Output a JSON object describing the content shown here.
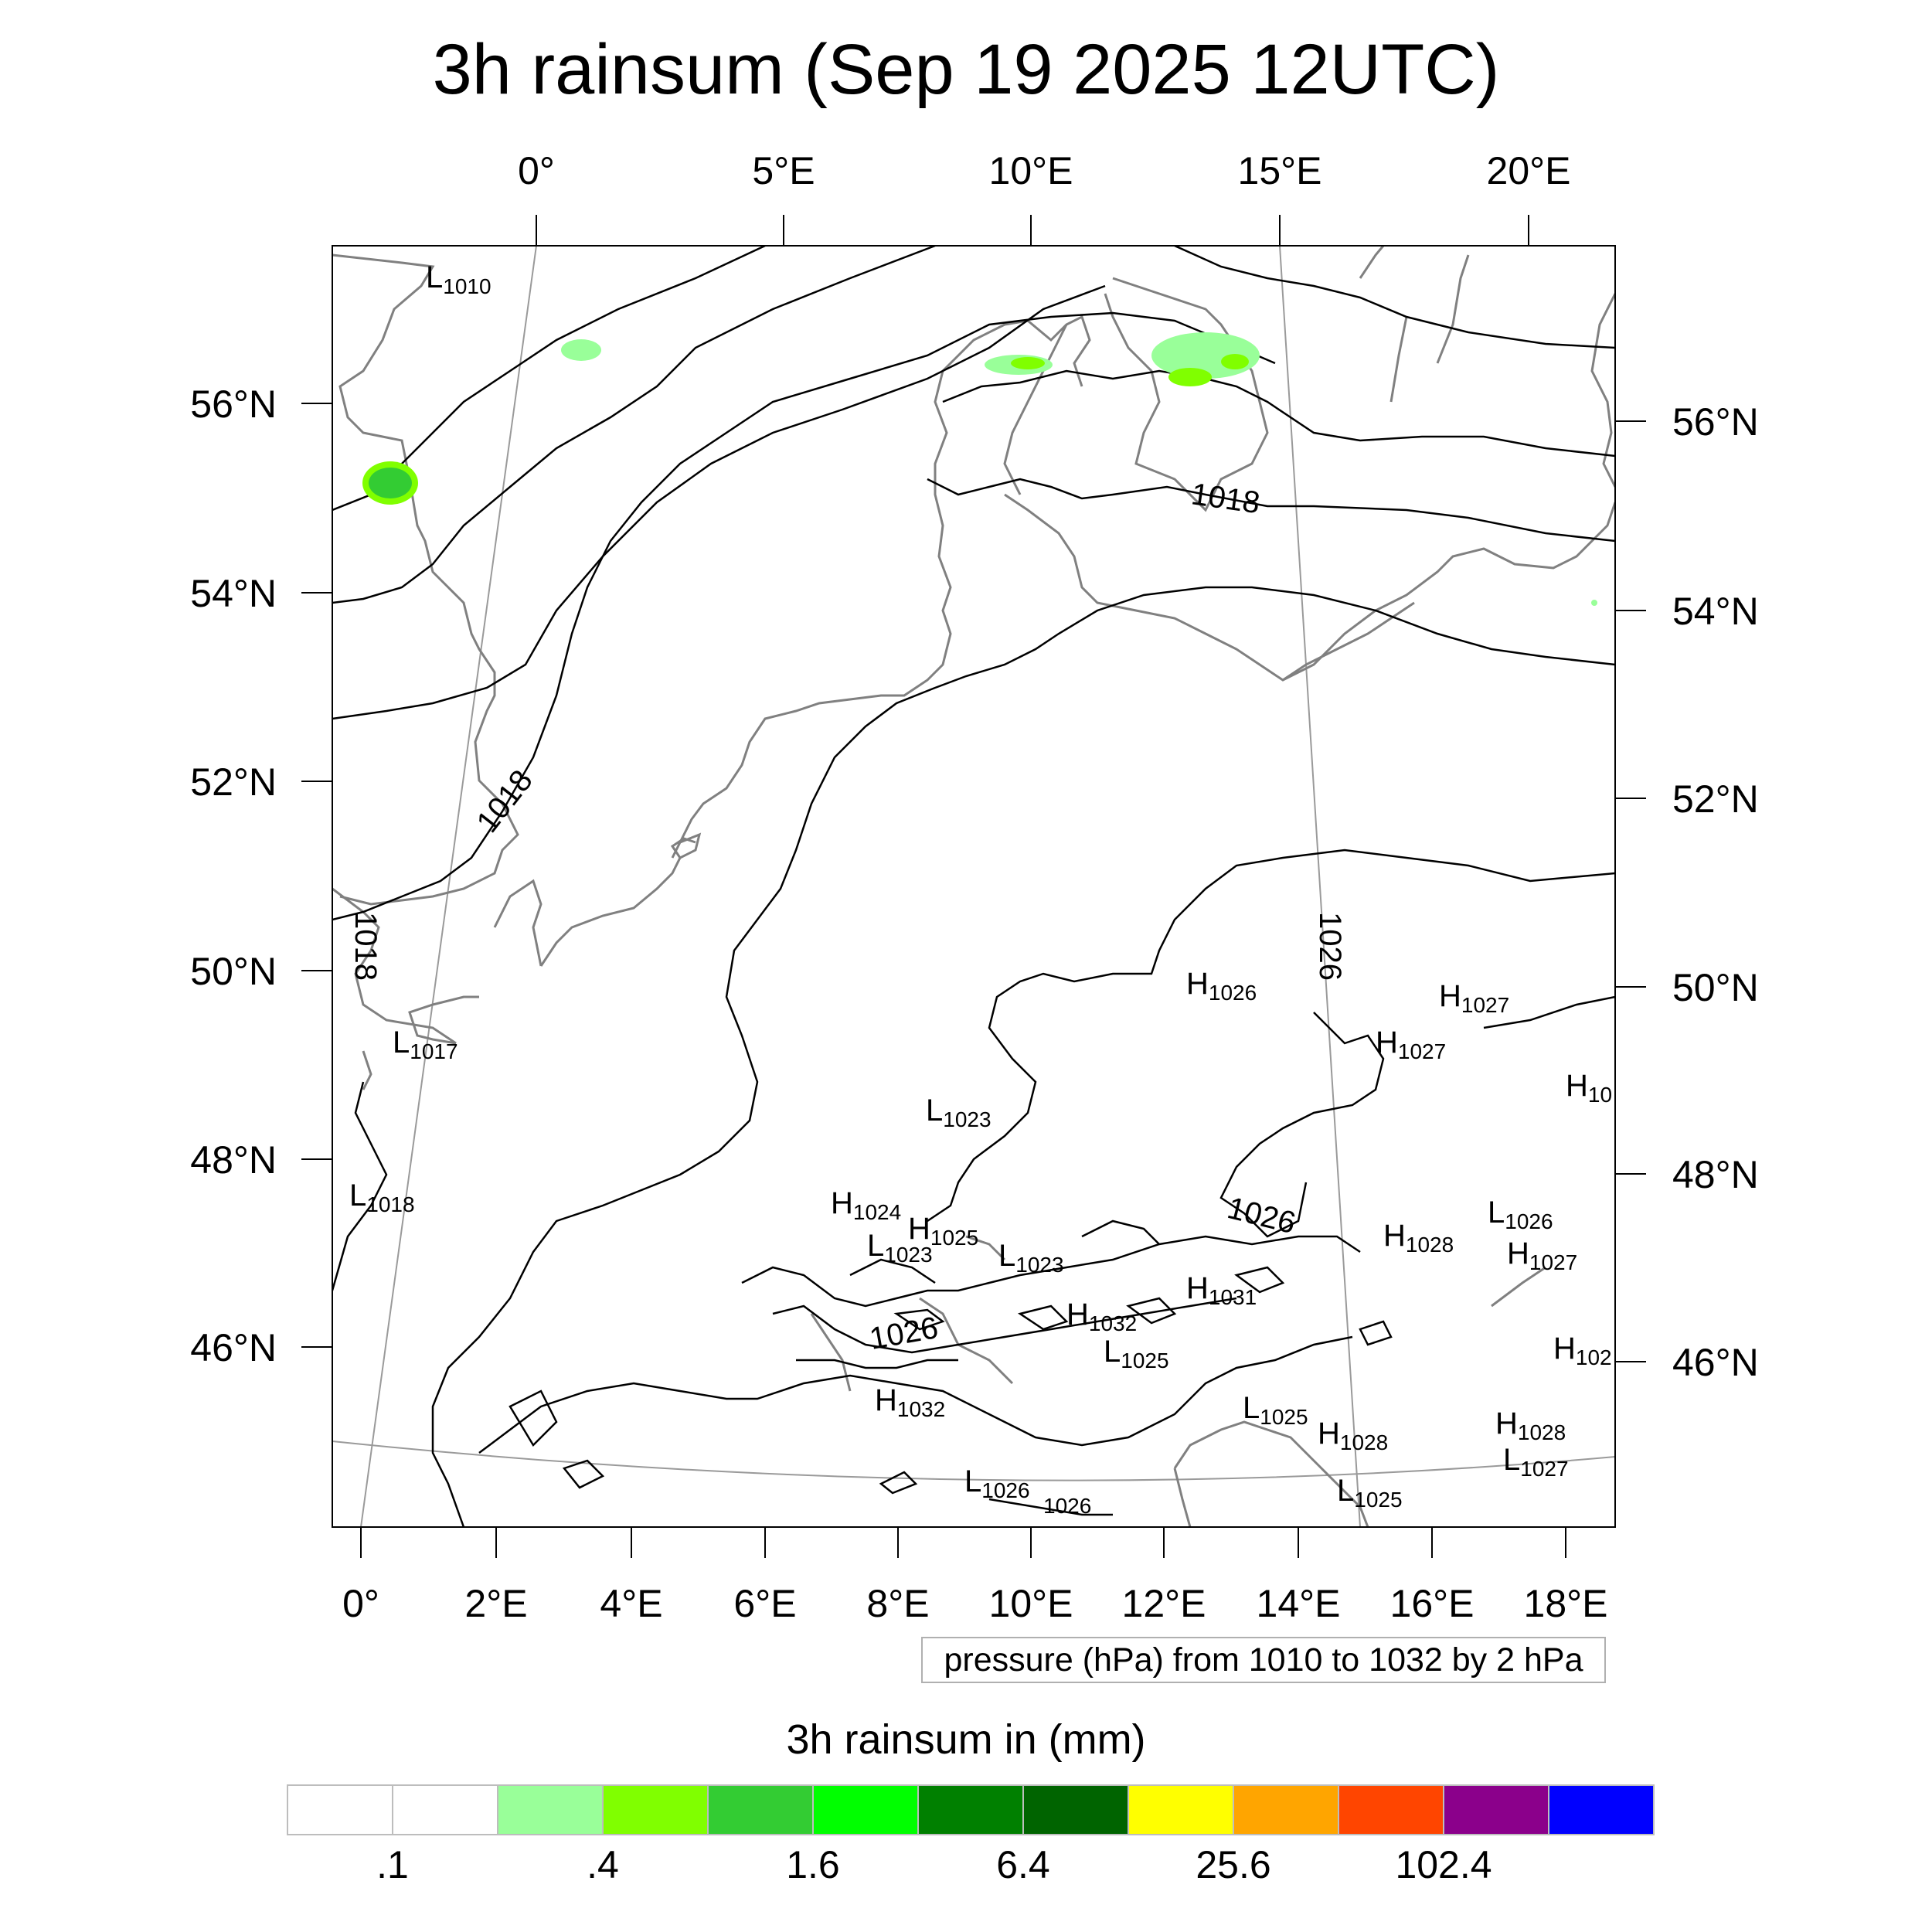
{
  "title": "3h rainsum (Sep 19 2025 12UTC)",
  "top_lon_labels": [
    "0°",
    "5°E",
    "10°E",
    "15°E",
    "20°E"
  ],
  "bottom_lon_labels": [
    "0°",
    "2°E",
    "4°E",
    "6°E",
    "8°E",
    "10°E",
    "12°E",
    "14°E",
    "16°E",
    "18°E"
  ],
  "left_lat_labels": [
    "56°N",
    "54°N",
    "52°N",
    "50°N",
    "48°N",
    "46°N"
  ],
  "right_lat_labels": [
    "56°N",
    "54°N",
    "52°N",
    "50°N",
    "48°N",
    "46°N"
  ],
  "contour_info": "pressure (hPa) from 1010 to 1032 by 2 hPa",
  "colorbar": {
    "title": "3h rainsum in (mm)",
    "colors": [
      "#ffffff",
      "#ffffff",
      "#99ff99",
      "#80ff00",
      "#33cc33",
      "#00ff00",
      "#008000",
      "#006400",
      "#ffff00",
      "#ffa500",
      "#ff4500",
      "#8b008b",
      "#0000ff"
    ],
    "tick_labels": [
      ".1",
      ".4",
      "1.6",
      "6.4",
      "25.6",
      "102.4"
    ]
  },
  "contour_labels": [
    "1018",
    "1018",
    "1018",
    "1026",
    "1026",
    "1026",
    "1026"
  ],
  "pressure_centers": [
    {
      "type": "L",
      "value": "1010"
    },
    {
      "type": "L",
      "value": "1017"
    },
    {
      "type": "L",
      "value": "1018"
    },
    {
      "type": "H",
      "value": "1026"
    },
    {
      "type": "H",
      "value": "1027"
    },
    {
      "type": "H",
      "value": "1027"
    },
    {
      "type": "H",
      "value": "10"
    },
    {
      "type": "L",
      "value": "1023"
    },
    {
      "type": "H",
      "value": "1024"
    },
    {
      "type": "H",
      "value": "1025"
    },
    {
      "type": "L",
      "value": "1023"
    },
    {
      "type": "L",
      "value": "1023"
    },
    {
      "type": "L",
      "value": "1026"
    },
    {
      "type": "H",
      "value": "1028"
    },
    {
      "type": "H",
      "value": "1027"
    },
    {
      "type": "H",
      "value": "1031"
    },
    {
      "type": "H",
      "value": "1032"
    },
    {
      "type": "L",
      "value": "1025"
    },
    {
      "type": "H",
      "value": "102"
    },
    {
      "type": "H",
      "value": "1032"
    },
    {
      "type": "L",
      "value": "1025"
    },
    {
      "type": "H",
      "value": "1028"
    },
    {
      "type": "H",
      "value": "1028"
    },
    {
      "type": "L",
      "value": "1027"
    },
    {
      "type": "L",
      "value": "1026"
    },
    {
      "type": "L",
      "value": "1025"
    }
  ]
}
